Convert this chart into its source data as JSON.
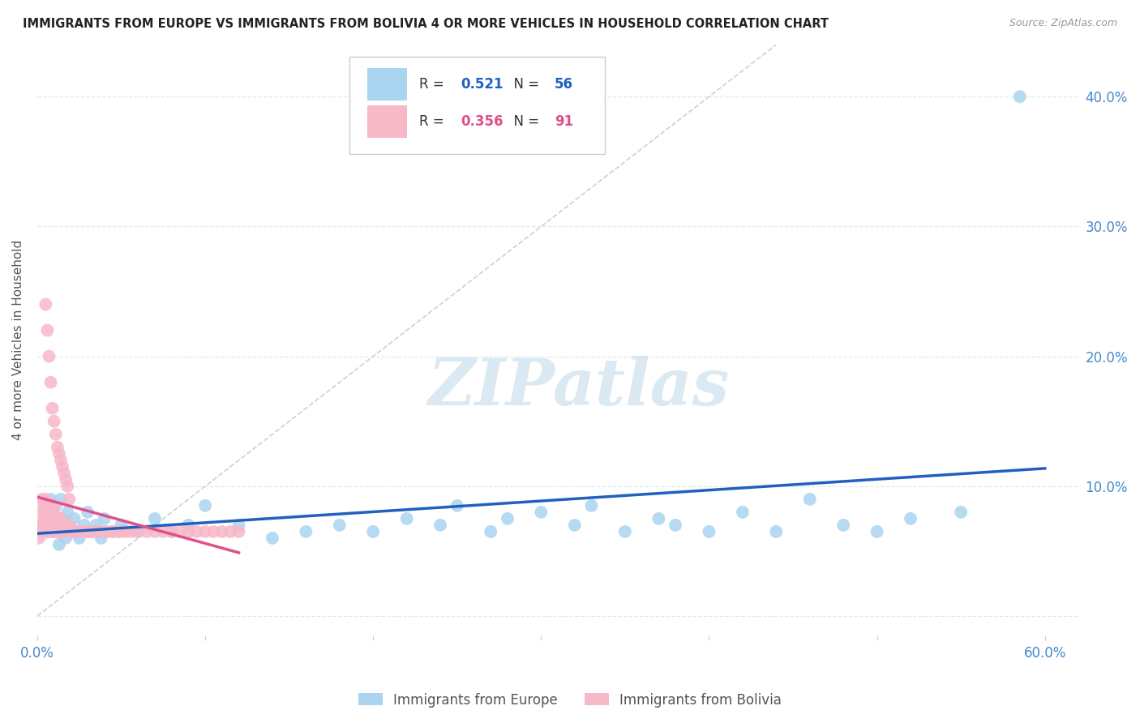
{
  "title": "IMMIGRANTS FROM EUROPE VS IMMIGRANTS FROM BOLIVIA 4 OR MORE VEHICLES IN HOUSEHOLD CORRELATION CHART",
  "source": "Source: ZipAtlas.com",
  "ylabel": "4 or more Vehicles in Household",
  "xlim": [
    0.0,
    0.62
  ],
  "ylim": [
    -0.015,
    0.44
  ],
  "right_yticks": [
    0.0,
    0.1,
    0.2,
    0.3,
    0.4
  ],
  "right_yticklabels": [
    "",
    "10.0%",
    "20.0%",
    "30.0%",
    "40.0%"
  ],
  "xticks": [
    0.0,
    0.1,
    0.2,
    0.3,
    0.4,
    0.5,
    0.6
  ],
  "xticklabels": [
    "0.0%",
    "",
    "",
    "",
    "",
    "",
    "60.0%"
  ],
  "europe_color": "#aad4f0",
  "europe_edge_color": "#aad4f0",
  "bolivia_color": "#f7b8c8",
  "bolivia_edge_color": "#f7b8c8",
  "europe_line_color": "#2060c0",
  "bolivia_line_color": "#e0508a",
  "diag_line_color": "#d0d0d0",
  "tick_color": "#4488cc",
  "R_europe": 0.521,
  "N_europe": 56,
  "R_bolivia": 0.356,
  "N_bolivia": 91,
  "europe_x": [
    0.003,
    0.005,
    0.006,
    0.008,
    0.009,
    0.01,
    0.011,
    0.012,
    0.013,
    0.014,
    0.015,
    0.016,
    0.017,
    0.018,
    0.019,
    0.02,
    0.022,
    0.025,
    0.028,
    0.03,
    0.032,
    0.035,
    0.038,
    0.04,
    0.045,
    0.05,
    0.06,
    0.07,
    0.08,
    0.09,
    0.1,
    0.12,
    0.14,
    0.16,
    0.18,
    0.2,
    0.22,
    0.24,
    0.25,
    0.27,
    0.28,
    0.3,
    0.32,
    0.33,
    0.35,
    0.37,
    0.38,
    0.4,
    0.42,
    0.44,
    0.46,
    0.48,
    0.5,
    0.52,
    0.55,
    0.585
  ],
  "europe_y": [
    0.07,
    0.075,
    0.065,
    0.09,
    0.08,
    0.065,
    0.085,
    0.07,
    0.055,
    0.09,
    0.065,
    0.075,
    0.06,
    0.08,
    0.07,
    0.065,
    0.075,
    0.06,
    0.07,
    0.08,
    0.065,
    0.07,
    0.06,
    0.075,
    0.065,
    0.07,
    0.065,
    0.075,
    0.065,
    0.07,
    0.085,
    0.07,
    0.06,
    0.065,
    0.07,
    0.065,
    0.075,
    0.07,
    0.085,
    0.065,
    0.075,
    0.08,
    0.07,
    0.085,
    0.065,
    0.075,
    0.07,
    0.065,
    0.08,
    0.065,
    0.09,
    0.07,
    0.065,
    0.075,
    0.08,
    0.4
  ],
  "bolivia_x": [
    0.001,
    0.002,
    0.002,
    0.003,
    0.003,
    0.004,
    0.004,
    0.005,
    0.005,
    0.005,
    0.005,
    0.006,
    0.006,
    0.006,
    0.007,
    0.007,
    0.007,
    0.008,
    0.008,
    0.008,
    0.009,
    0.009,
    0.009,
    0.01,
    0.01,
    0.01,
    0.011,
    0.011,
    0.012,
    0.012,
    0.013,
    0.013,
    0.014,
    0.014,
    0.015,
    0.015,
    0.016,
    0.016,
    0.017,
    0.018,
    0.019,
    0.02,
    0.021,
    0.022,
    0.023,
    0.024,
    0.025,
    0.026,
    0.027,
    0.028,
    0.029,
    0.03,
    0.031,
    0.033,
    0.035,
    0.037,
    0.04,
    0.042,
    0.045,
    0.048,
    0.05,
    0.053,
    0.056,
    0.06,
    0.065,
    0.07,
    0.075,
    0.08,
    0.085,
    0.09,
    0.095,
    0.1,
    0.105,
    0.11,
    0.115,
    0.12,
    0.005,
    0.006,
    0.007,
    0.008,
    0.009,
    0.01,
    0.011,
    0.012,
    0.013,
    0.014,
    0.015,
    0.016,
    0.017,
    0.018,
    0.019
  ],
  "bolivia_y": [
    0.06,
    0.065,
    0.07,
    0.08,
    0.09,
    0.075,
    0.085,
    0.07,
    0.08,
    0.09,
    0.065,
    0.075,
    0.08,
    0.085,
    0.07,
    0.075,
    0.08,
    0.065,
    0.075,
    0.085,
    0.07,
    0.075,
    0.08,
    0.065,
    0.08,
    0.085,
    0.065,
    0.075,
    0.065,
    0.07,
    0.065,
    0.075,
    0.065,
    0.075,
    0.065,
    0.07,
    0.065,
    0.07,
    0.065,
    0.065,
    0.07,
    0.065,
    0.065,
    0.065,
    0.065,
    0.065,
    0.065,
    0.065,
    0.065,
    0.065,
    0.065,
    0.065,
    0.065,
    0.065,
    0.065,
    0.065,
    0.065,
    0.065,
    0.065,
    0.065,
    0.065,
    0.065,
    0.065,
    0.065,
    0.065,
    0.065,
    0.065,
    0.065,
    0.065,
    0.065,
    0.065,
    0.065,
    0.065,
    0.065,
    0.065,
    0.065,
    0.24,
    0.22,
    0.2,
    0.18,
    0.16,
    0.15,
    0.14,
    0.13,
    0.125,
    0.12,
    0.115,
    0.11,
    0.105,
    0.1,
    0.09
  ],
  "watermark_text": "ZIPatlas",
  "background_color": "#ffffff",
  "grid_color": "#e0e8f0"
}
